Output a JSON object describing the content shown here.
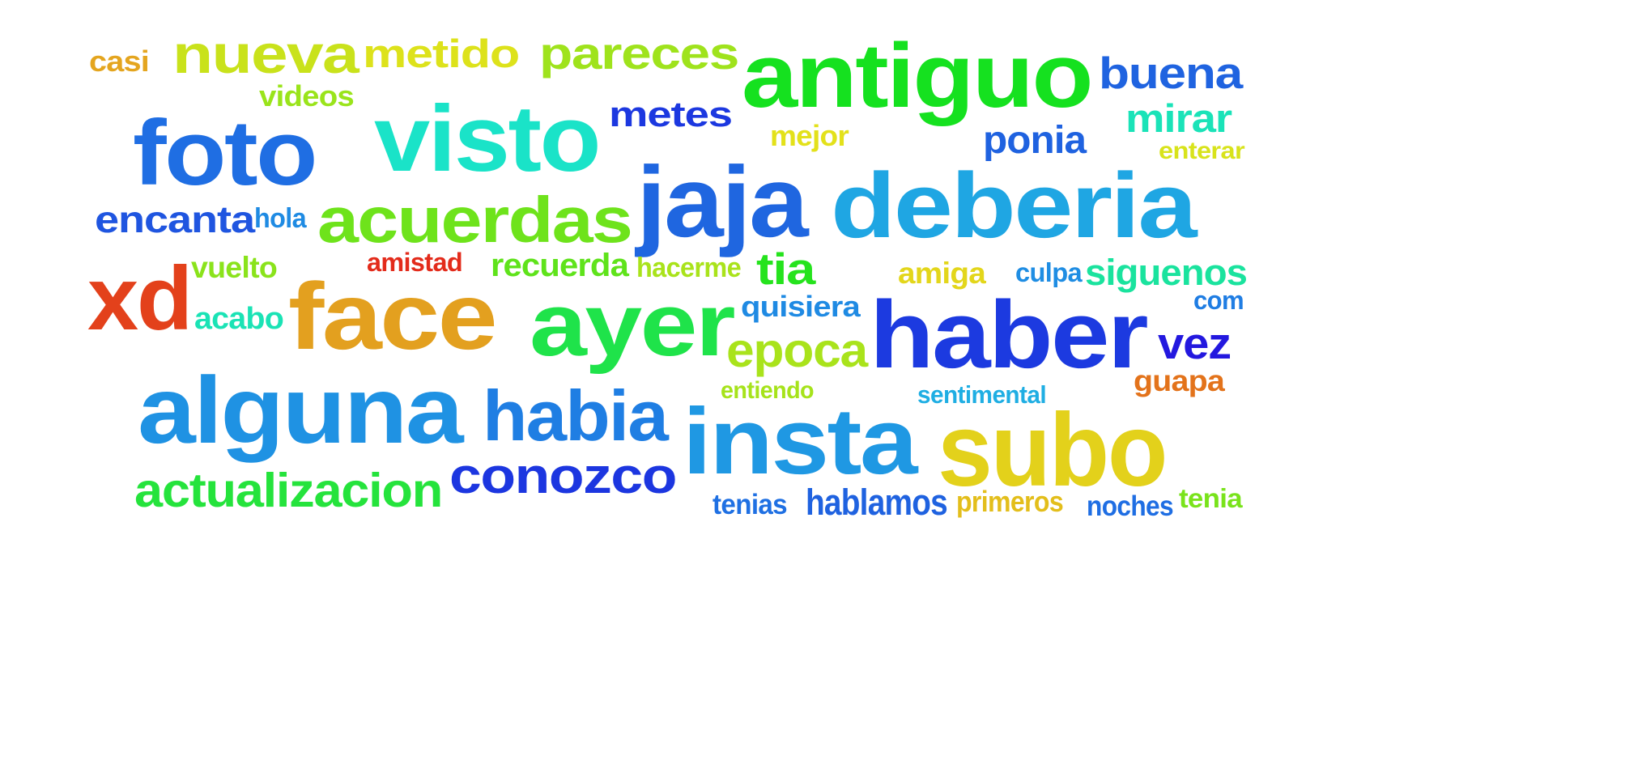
{
  "words": [
    {
      "text": "casi",
      "color": "#e4a51f"
    },
    {
      "text": "nueva",
      "color": "#c9e21b"
    },
    {
      "text": "metido",
      "color": "#dde21b"
    },
    {
      "text": "pareces",
      "color": "#9fe31c"
    },
    {
      "text": "antiguo",
      "color": "#15e11f"
    },
    {
      "text": "buena",
      "color": "#1f63e0"
    },
    {
      "text": "videos",
      "color": "#9ae41b"
    },
    {
      "text": "visto",
      "color": "#1ae3c8"
    },
    {
      "text": "metes",
      "color": "#1c38e0"
    },
    {
      "text": "mirar",
      "color": "#1ae3b8"
    },
    {
      "text": "foto",
      "color": "#1f6ee3"
    },
    {
      "text": "mejor",
      "color": "#e3e11a"
    },
    {
      "text": "ponia",
      "color": "#1f62e0"
    },
    {
      "text": "enterar",
      "color": "#d8e31b"
    },
    {
      "text": "jaja",
      "color": "#1f66e0"
    },
    {
      "text": "deberia",
      "color": "#1fa6e3"
    },
    {
      "text": "acuerdas",
      "color": "#6ee31b"
    },
    {
      "text": "encanta",
      "color": "#1f55e0"
    },
    {
      "text": "hola",
      "color": "#1f8be3"
    },
    {
      "text": "xd",
      "color": "#e3411b"
    },
    {
      "text": "vuelto",
      "color": "#8ae31b"
    },
    {
      "text": "amistad",
      "color": "#e32b1b"
    },
    {
      "text": "recuerda",
      "color": "#5fe31b"
    },
    {
      "text": "hacerme",
      "color": "#a9e31b"
    },
    {
      "text": "tia",
      "color": "#25e31d"
    },
    {
      "text": "amiga",
      "color": "#e3d61b"
    },
    {
      "text": "culpa",
      "color": "#1f8de3"
    },
    {
      "text": "siguenos",
      "color": "#1ae39e"
    },
    {
      "text": "face",
      "color": "#e3a01f"
    },
    {
      "text": "ayer",
      "color": "#1fe34a"
    },
    {
      "text": "quisiera",
      "color": "#1f8ae3"
    },
    {
      "text": "com",
      "color": "#1f7de3"
    },
    {
      "text": "acabo",
      "color": "#1ae3b5"
    },
    {
      "text": "haber",
      "color": "#1c3ae0"
    },
    {
      "text": "epoca",
      "color": "#a9e31b"
    },
    {
      "text": "vez",
      "color": "#2318df"
    },
    {
      "text": "guapa",
      "color": "#e3731b"
    },
    {
      "text": "alguna",
      "color": "#1f92e3"
    },
    {
      "text": "habia",
      "color": "#1f7ee3"
    },
    {
      "text": "entiendo",
      "color": "#a6e31b"
    },
    {
      "text": "sentimental",
      "color": "#1faee3"
    },
    {
      "text": "insta",
      "color": "#1f98e3"
    },
    {
      "text": "subo",
      "color": "#e3d11b"
    },
    {
      "text": "conozco",
      "color": "#1c36e0"
    },
    {
      "text": "actualizacion",
      "color": "#25e33c"
    },
    {
      "text": "tenias",
      "color": "#1f70e3"
    },
    {
      "text": "hablamos",
      "color": "#1f62e0"
    },
    {
      "text": "primeros",
      "color": "#e3be1b"
    },
    {
      "text": "noches",
      "color": "#1f6ee3"
    },
    {
      "text": "tenia",
      "color": "#79e31b"
    }
  ]
}
